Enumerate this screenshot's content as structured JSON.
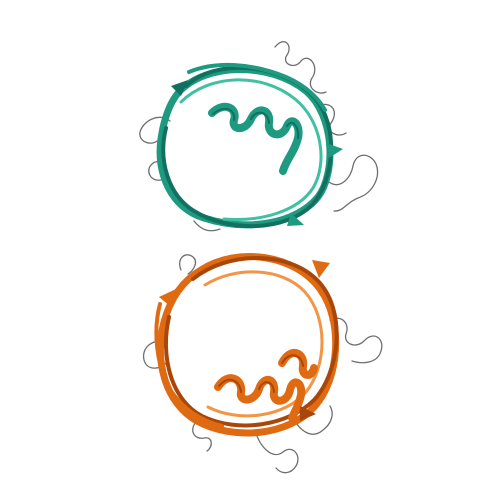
{
  "image": {
    "background": "#ffffff",
    "subject": "protein-structure-cartoon",
    "chains": [
      {
        "name": "chain-a",
        "color": "#1d9a80",
        "dark_color": "#127060",
        "light_color": "#3fc0a2"
      },
      {
        "name": "chain-b",
        "color": "#e06a12",
        "dark_color": "#a9470b",
        "light_color": "#f29546"
      }
    ],
    "loop_color": "#6f6f6f"
  }
}
